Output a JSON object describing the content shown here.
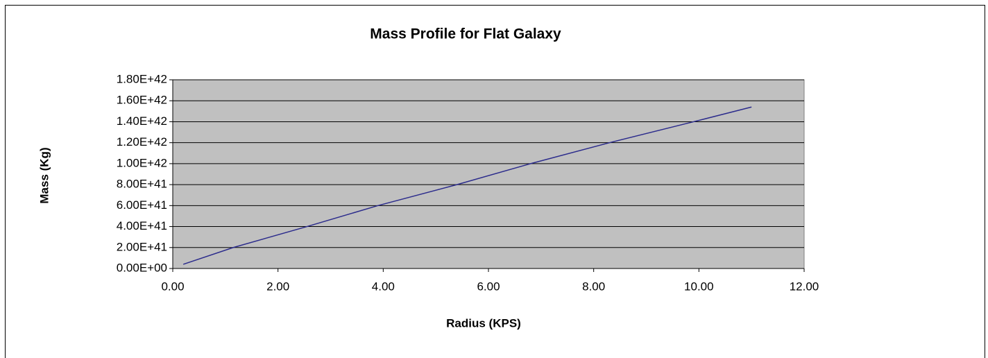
{
  "chart_data": {
    "type": "line",
    "title": "Mass Profile for Flat Galaxy",
    "x_label": "Radius (KPS)",
    "y_label": "Mass (Kg)",
    "x": [
      0.2,
      1.15,
      2.55,
      3.9,
      5.4,
      6.8,
      8.3,
      9.9,
      11.0
    ],
    "series": [
      {
        "name": "Mass",
        "color": "#2b2b8c",
        "values": [
          4e+40,
          2e+41,
          4e+41,
          6e+41,
          8e+41,
          1e+42,
          1.2e+42,
          1.4e+42,
          1.54e+42
        ]
      }
    ],
    "xlim": [
      0,
      12
    ],
    "xticks": [
      {
        "value": 0,
        "label": "0.00"
      },
      {
        "value": 2,
        "label": "2.00"
      },
      {
        "value": 4,
        "label": "4.00"
      },
      {
        "value": 6,
        "label": "6.00"
      },
      {
        "value": 8,
        "label": "8.00"
      },
      {
        "value": 10,
        "label": "10.00"
      },
      {
        "value": 12,
        "label": "12.00"
      }
    ],
    "ylim": [
      0,
      1.8e+42
    ],
    "yticks": [
      {
        "value": 0,
        "label": "0.00E+00"
      },
      {
        "value": 2e+41,
        "label": "2.00E+41"
      },
      {
        "value": 4e+41,
        "label": "4.00E+41"
      },
      {
        "value": 6e+41,
        "label": "6.00E+41"
      },
      {
        "value": 8e+41,
        "label": "8.00E+41"
      },
      {
        "value": 1e+42,
        "label": "1.00E+42"
      },
      {
        "value": 1.2e+42,
        "label": "1.20E+42"
      },
      {
        "value": 1.4e+42,
        "label": "1.40E+42"
      },
      {
        "value": 1.6e+42,
        "label": "1.60E+42"
      },
      {
        "value": 1.8e+42,
        "label": "1.80E+42"
      }
    ],
    "grid": true
  }
}
